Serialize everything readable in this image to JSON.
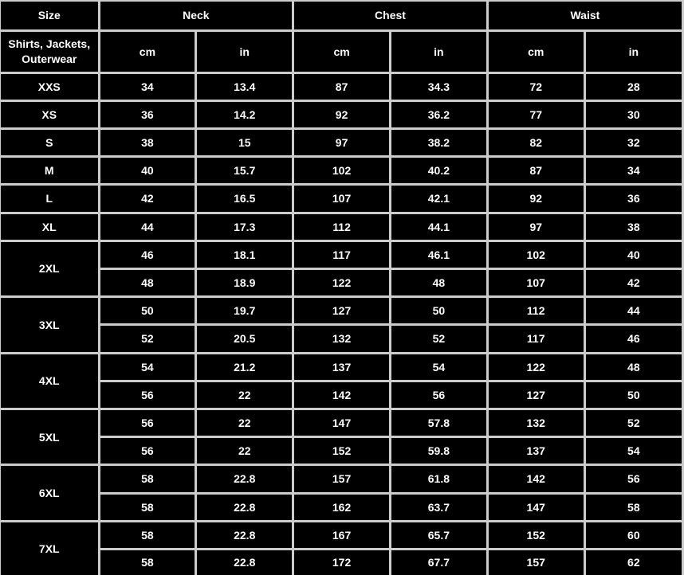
{
  "colors": {
    "background": "#000000",
    "text": "#ffffff",
    "border": "#cccccc"
  },
  "header": {
    "size_label": "Size",
    "category_label": "Shirts, Jackets, Outerwear",
    "groups": [
      {
        "label": "Neck",
        "units": [
          "cm",
          "in"
        ]
      },
      {
        "label": "Chest",
        "units": [
          "cm",
          "in"
        ]
      },
      {
        "label": "Waist",
        "units": [
          "cm",
          "in"
        ]
      }
    ]
  },
  "chart_data": {
    "type": "table",
    "columns": [
      "Size",
      "Neck cm",
      "Neck in",
      "Chest cm",
      "Chest in",
      "Waist cm",
      "Waist in"
    ],
    "rows": [
      [
        "XXS",
        "34",
        "13.4",
        "87",
        "34.3",
        "72",
        "28"
      ],
      [
        "XS",
        "36",
        "14.2",
        "92",
        "36.2",
        "77",
        "30"
      ],
      [
        "S",
        "38",
        "15",
        "97",
        "38.2",
        "82",
        "32"
      ],
      [
        "M",
        "40",
        "15.7",
        "102",
        "40.2",
        "87",
        "34"
      ],
      [
        "L",
        "42",
        "16.5",
        "107",
        "42.1",
        "92",
        "36"
      ],
      [
        "XL",
        "44",
        "17.3",
        "112",
        "44.1",
        "97",
        "38"
      ],
      [
        "2XL",
        "46",
        "18.1",
        "117",
        "46.1",
        "102",
        "40"
      ],
      [
        "2XL",
        "48",
        "18.9",
        "122",
        "48",
        "107",
        "42"
      ],
      [
        "3XL",
        "50",
        "19.7",
        "127",
        "50",
        "112",
        "44"
      ],
      [
        "3XL",
        "52",
        "20.5",
        "132",
        "52",
        "117",
        "46"
      ],
      [
        "4XL",
        "54",
        "21.2",
        "137",
        "54",
        "122",
        "48"
      ],
      [
        "4XL",
        "56",
        "22",
        "142",
        "56",
        "127",
        "50"
      ],
      [
        "5XL",
        "56",
        "22",
        "147",
        "57.8",
        "132",
        "52"
      ],
      [
        "5XL",
        "56",
        "22",
        "152",
        "59.8",
        "137",
        "54"
      ],
      [
        "6XL",
        "58",
        "22.8",
        "157",
        "61.8",
        "142",
        "56"
      ],
      [
        "6XL",
        "58",
        "22.8",
        "162",
        "63.7",
        "147",
        "58"
      ],
      [
        "7XL",
        "58",
        "22.8",
        "167",
        "65.7",
        "152",
        "60"
      ],
      [
        "7XL",
        "58",
        "22.8",
        "172",
        "67.7",
        "157",
        "62"
      ]
    ]
  }
}
